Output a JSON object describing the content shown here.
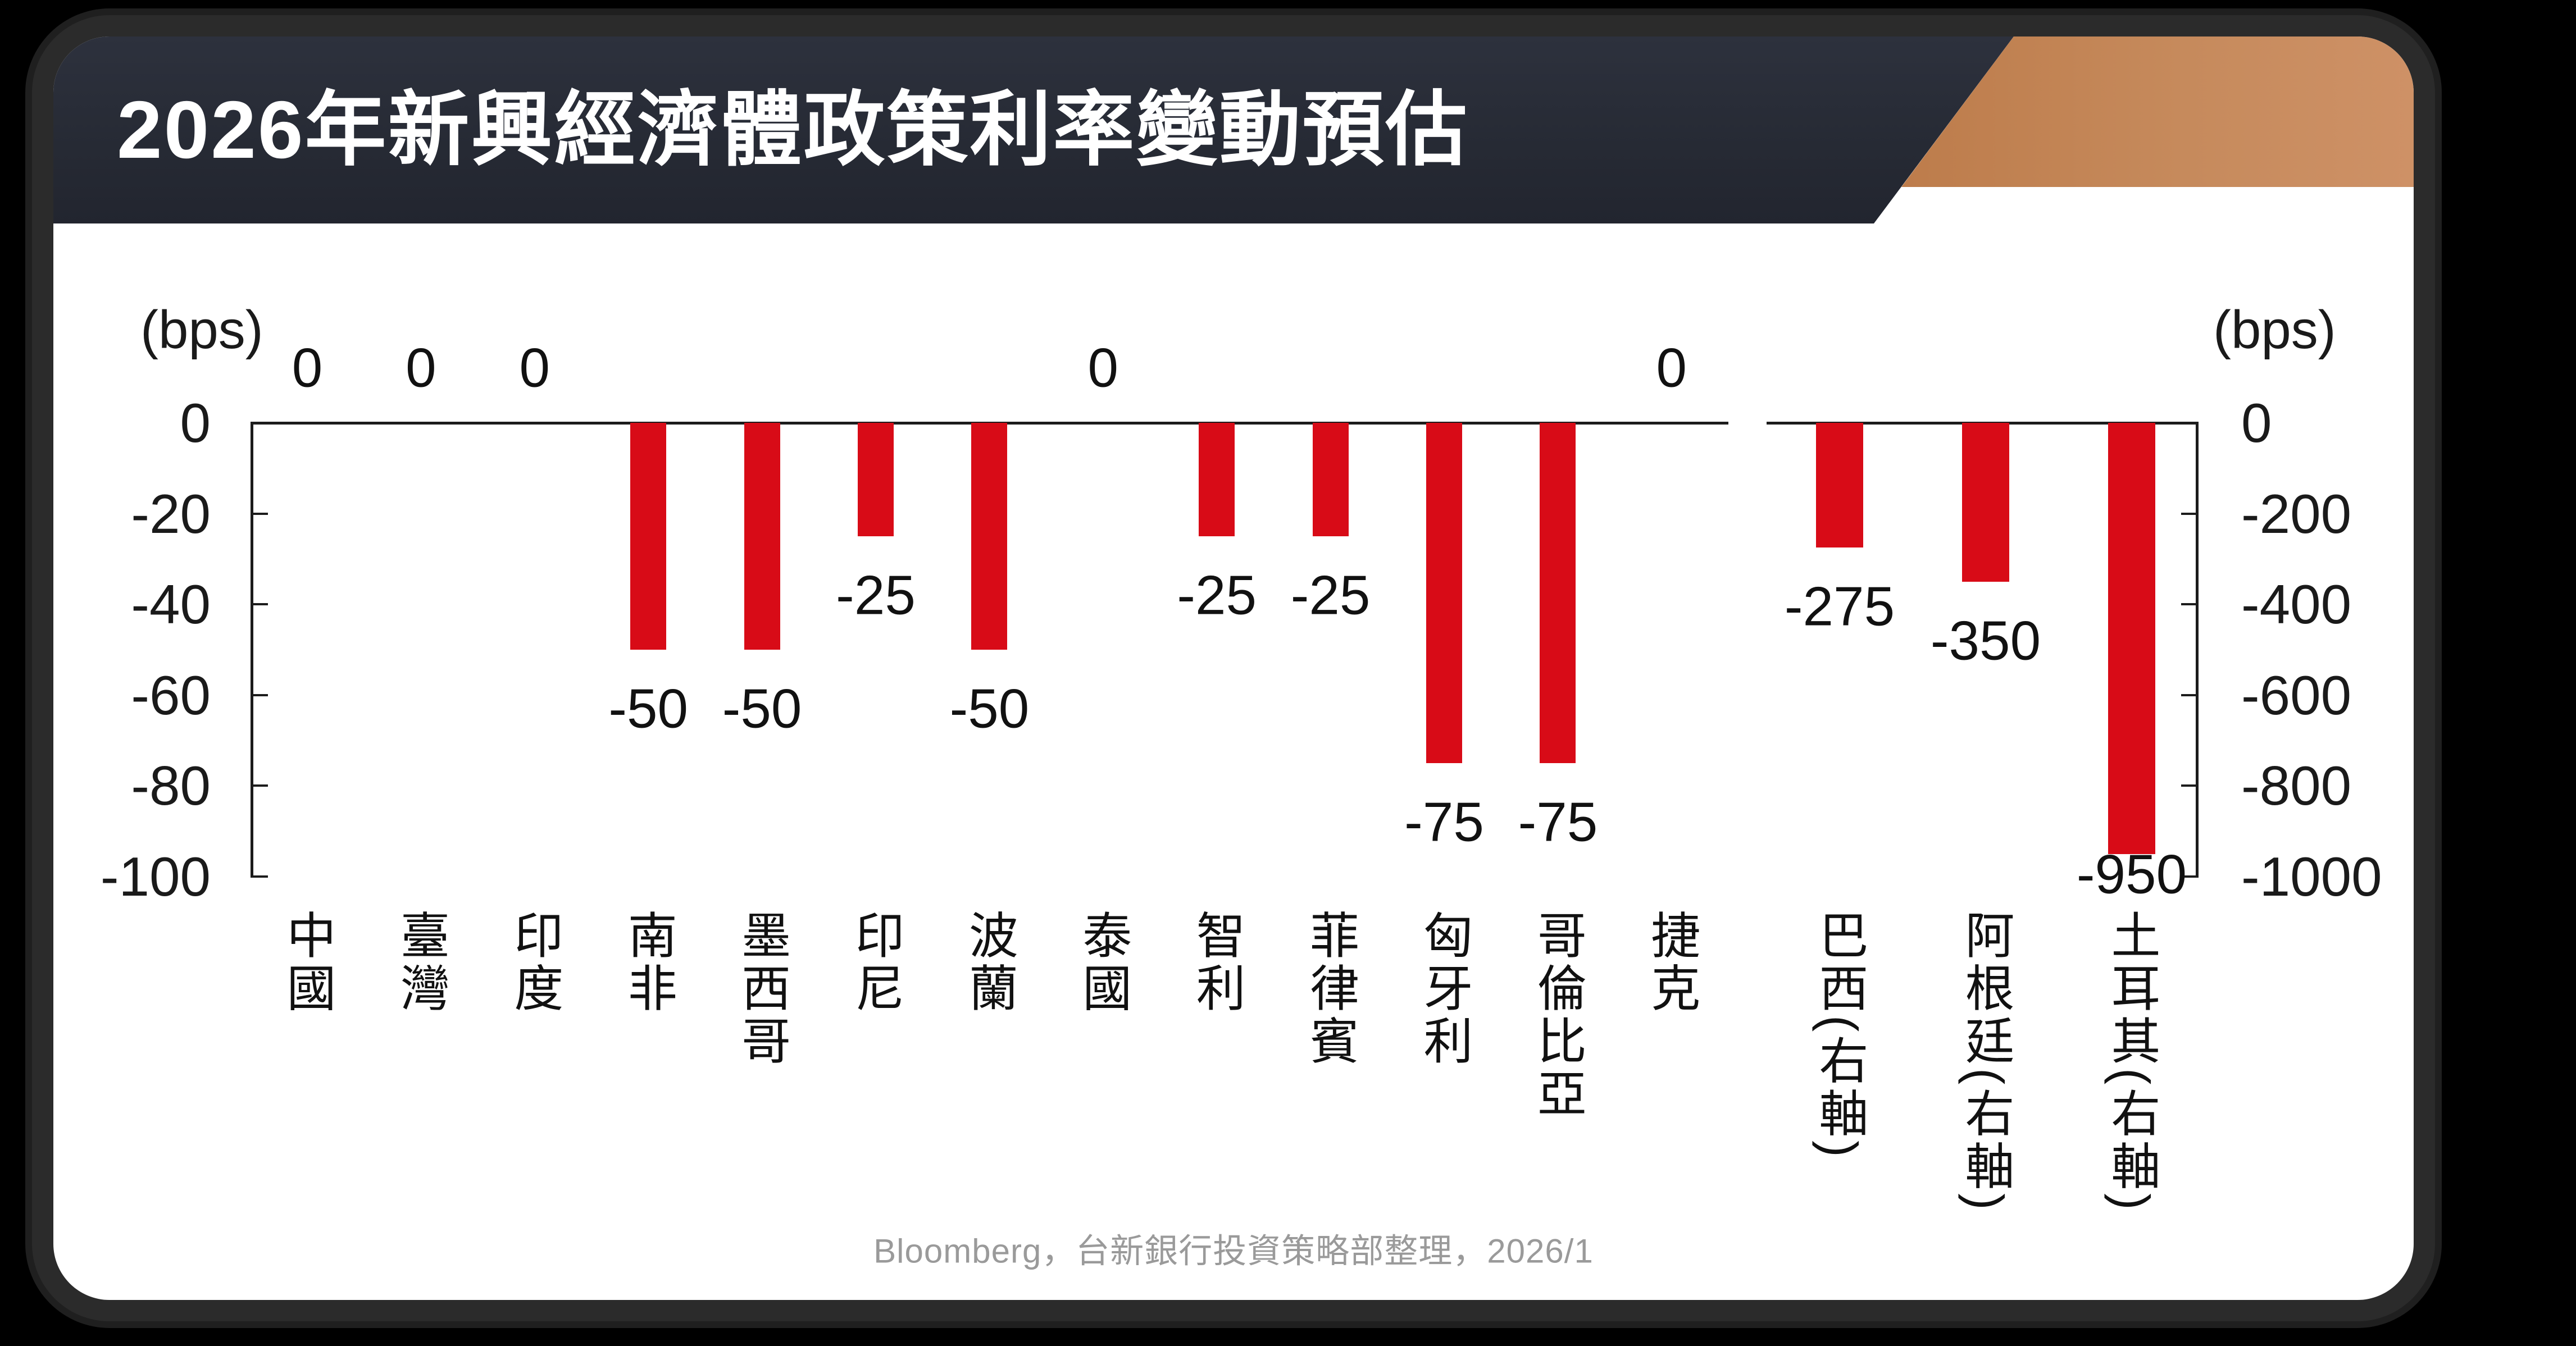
{
  "page": {
    "source_note": "Bloomberg，台新銀行投資策略部整理，2026/1"
  },
  "theme": {
    "bar_color": "#D80B17",
    "header_bg": "#262A34",
    "copper_gradient_start": "#BD7C4B",
    "copper_gradient_end": "#CE9166",
    "card_bg": "#FFFFFF",
    "page_bg": "#000000",
    "text_color": "#111111",
    "footer_color": "#9A9A9A"
  },
  "chart_data": {
    "type": "bar",
    "title": "2026年新興經濟體政策利率變動預估",
    "xlabel": "",
    "ylabel": "bps",
    "grid": false,
    "legend": false,
    "left_axis": {
      "label": "(bps)",
      "min": -100,
      "max": 0,
      "ticks": [
        0,
        -20,
        -40,
        -60,
        -80,
        -100
      ]
    },
    "right_axis": {
      "label": "(bps)",
      "min": -1000,
      "max": 0,
      "ticks": [
        0,
        -200,
        -400,
        -600,
        -800,
        -1000
      ]
    },
    "series": [
      {
        "category": "中國",
        "value": 0,
        "axis": "left"
      },
      {
        "category": "臺灣",
        "value": 0,
        "axis": "left"
      },
      {
        "category": "印度",
        "value": 0,
        "axis": "left"
      },
      {
        "category": "南非",
        "value": -50,
        "axis": "left"
      },
      {
        "category": "墨西哥",
        "value": -50,
        "axis": "left"
      },
      {
        "category": "印尼",
        "value": -25,
        "axis": "left"
      },
      {
        "category": "波蘭",
        "value": -50,
        "axis": "left"
      },
      {
        "category": "泰國",
        "value": 0,
        "axis": "left"
      },
      {
        "category": "智利",
        "value": -25,
        "axis": "left"
      },
      {
        "category": "菲律賓",
        "value": -25,
        "axis": "left"
      },
      {
        "category": "匈牙利",
        "value": -75,
        "axis": "left"
      },
      {
        "category": "哥倫比亞",
        "value": -75,
        "axis": "left"
      },
      {
        "category": "捷克",
        "value": 0,
        "axis": "left"
      },
      {
        "category": "巴西(右軸)",
        "value": -275,
        "axis": "right"
      },
      {
        "category": "阿根廷(右軸)",
        "value": -350,
        "axis": "right"
      },
      {
        "category": "土耳其(右軸)",
        "value": -950,
        "axis": "right"
      }
    ]
  }
}
